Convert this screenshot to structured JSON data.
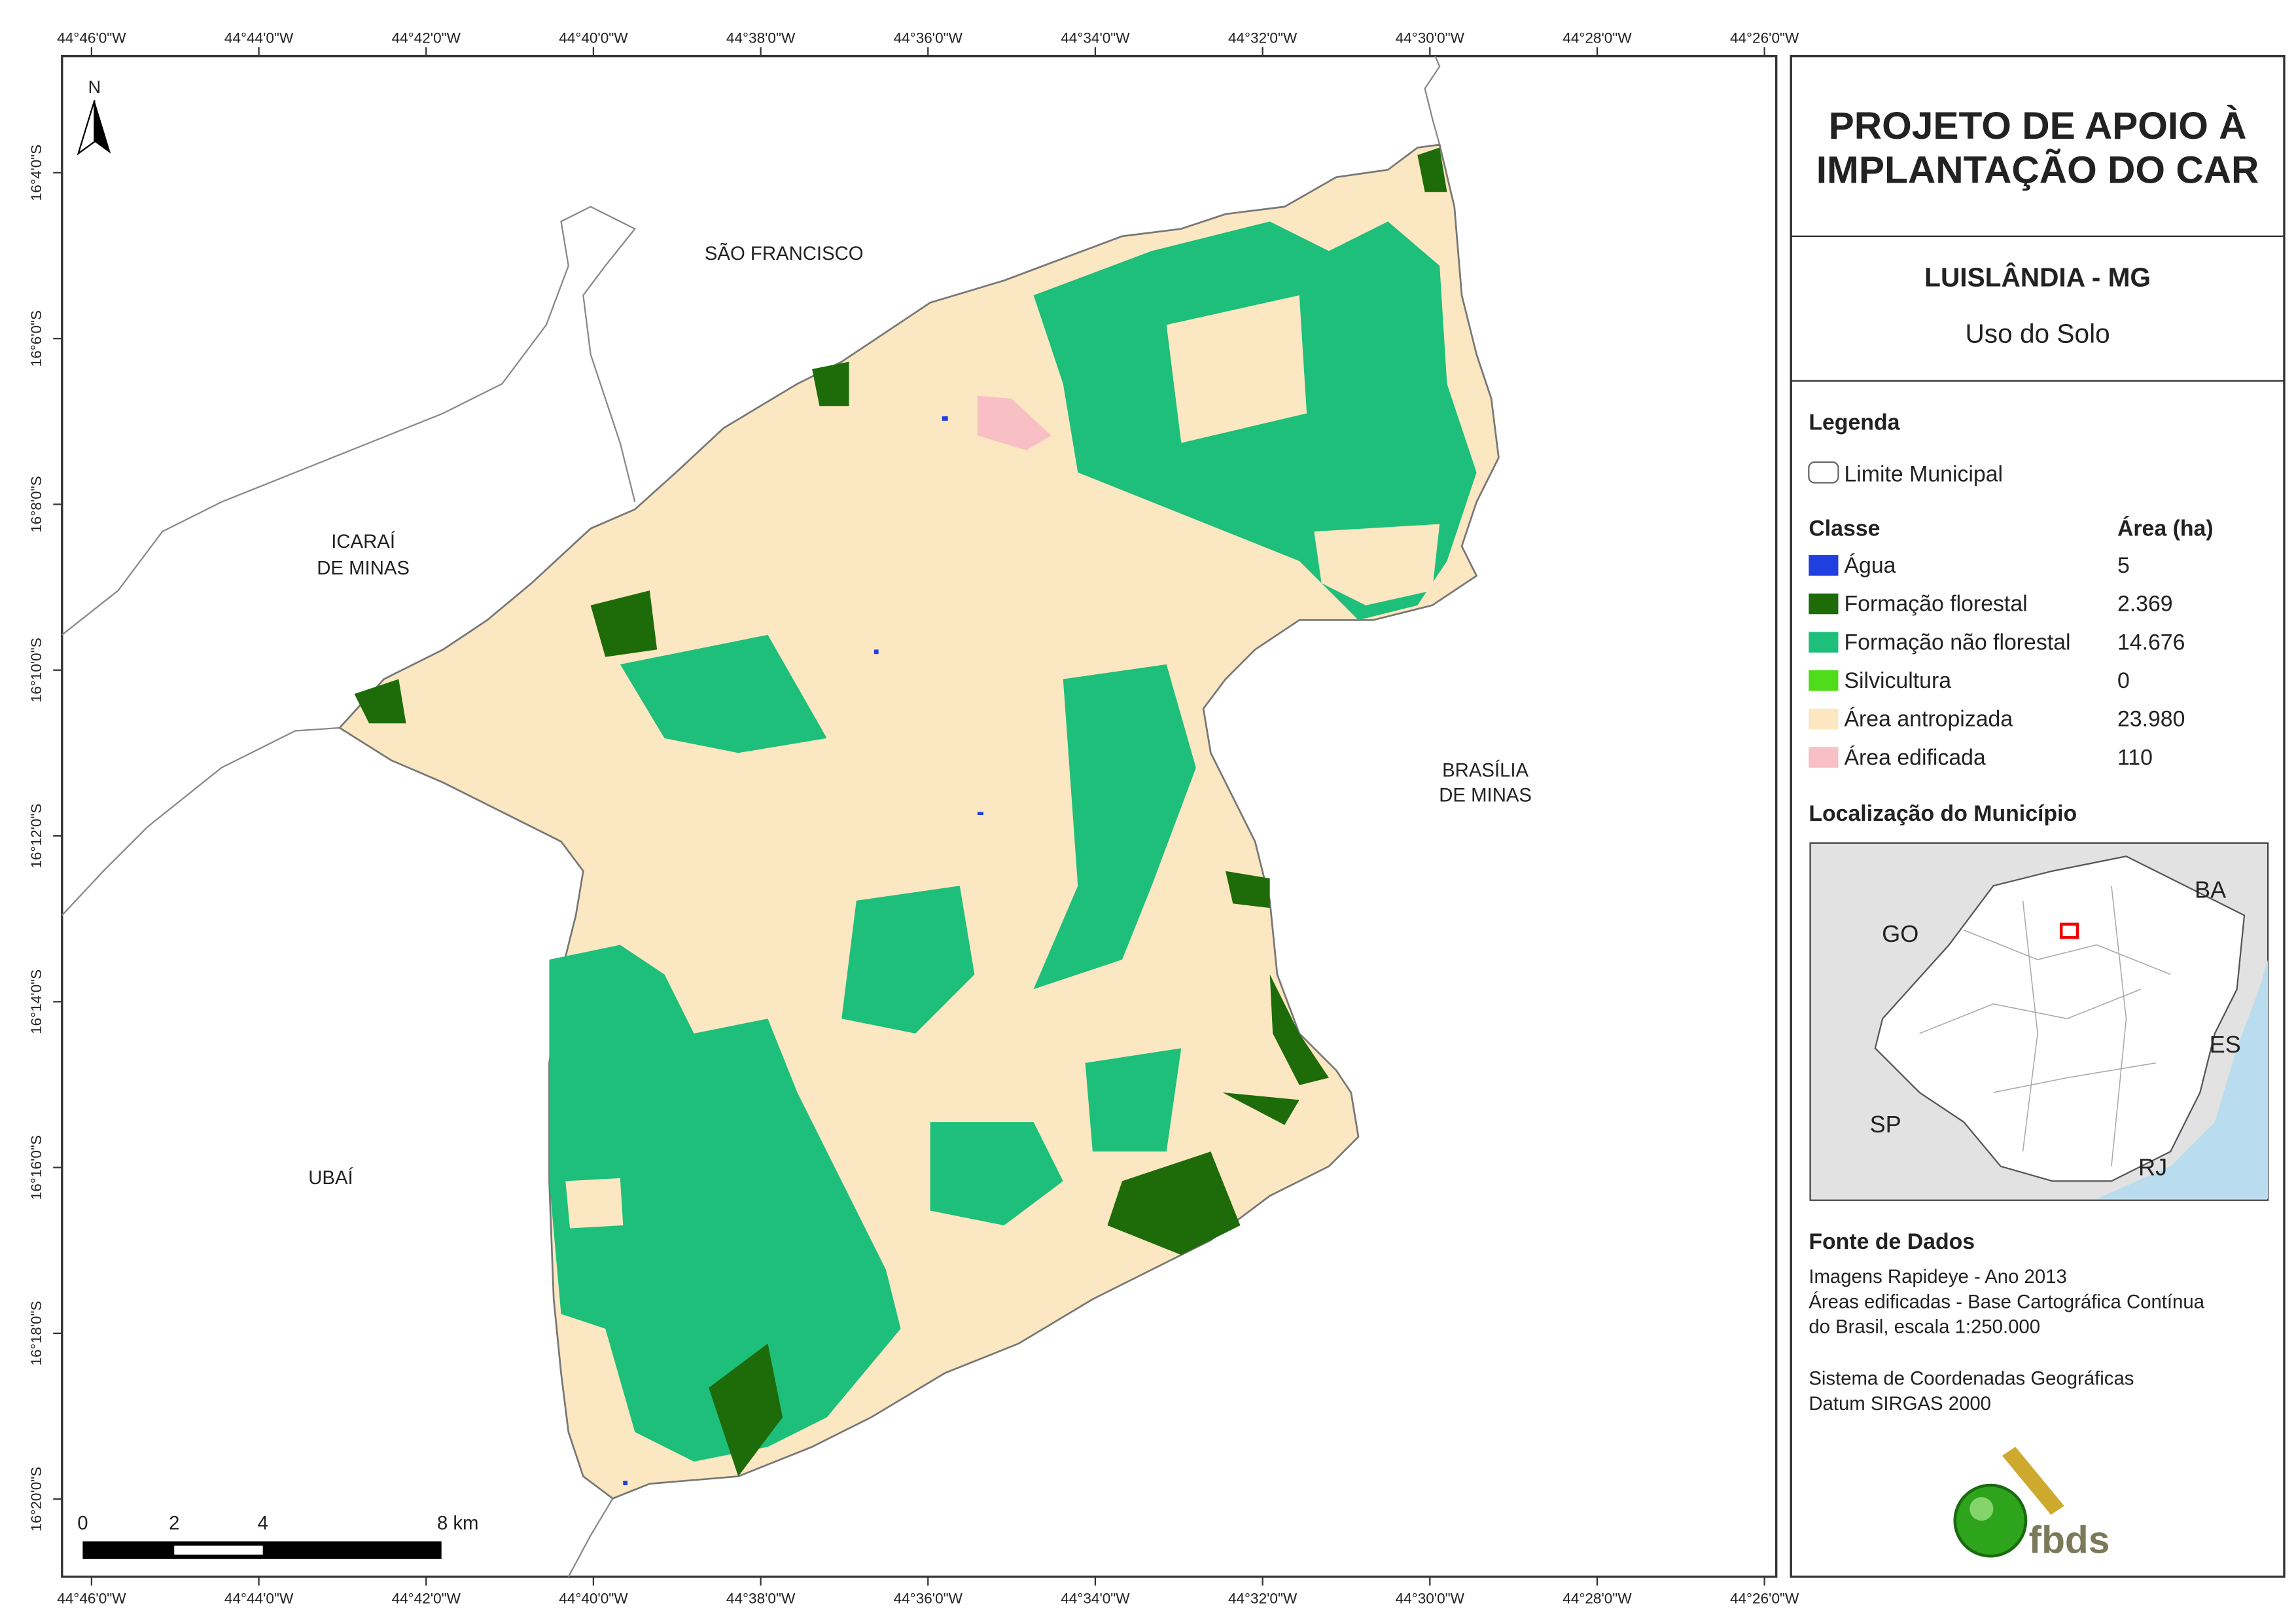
{
  "map": {
    "longitude_labels": [
      "44°46'0\"W",
      "44°44'0\"W",
      "44°42'0\"W",
      "44°40'0\"W",
      "44°38'0\"W",
      "44°36'0\"W",
      "44°34'0\"W",
      "44°32'0\"W",
      "44°30'0\"W",
      "44°28'0\"W",
      "44°26'0\"W"
    ],
    "latitude_labels": [
      "16°4'0\"S",
      "16°6'0\"S",
      "16°8'0\"S",
      "16°10'0\"S",
      "16°12'0\"S",
      "16°14'0\"S",
      "16°16'0\"S",
      "16°18'0\"S",
      "16°20'0\"S"
    ],
    "north": "N",
    "places": [
      {
        "lines": [
          "SÃO FRANCISCO"
        ]
      },
      {
        "lines": [
          "ICARAÍ",
          "DE MINAS"
        ]
      },
      {
        "lines": [
          "BRASÍLIA",
          "DE MINAS"
        ]
      },
      {
        "lines": [
          "UBAÍ"
        ]
      }
    ],
    "scale_bar": [
      "0",
      "2",
      "4",
      "8 km"
    ]
  },
  "panel": {
    "title": [
      "PROJETO DE APOIO À",
      "IMPLANTAÇÃO DO CAR"
    ],
    "municipality": "LUISLÂNDIA - MG",
    "theme": "Uso do Solo",
    "legend": {
      "heading": "Legenda",
      "boundary": "Limite Municipal",
      "class_heading": "Classe",
      "area_heading": "Área (ha)",
      "classes": [
        {
          "name": "Água",
          "area": "5",
          "color": "#1f3fe0"
        },
        {
          "name": "Formação florestal",
          "area": "2.369",
          "color": "#1e6b0a"
        },
        {
          "name": "Formação não florestal",
          "area": "14.676",
          "color": "#1dbf7b"
        },
        {
          "name": "Silvicultura",
          "area": "0",
          "color": "#4fdc1a"
        },
        {
          "name": "Área antropizada",
          "area": "23.980",
          "color": "#fbe7c1"
        },
        {
          "name": "Área edificada",
          "area": "110",
          "color": "#f8c0c5"
        }
      ]
    },
    "location": {
      "heading": "Localização do Município",
      "states": [
        "GO",
        "BA",
        "ES",
        "SP",
        "RJ"
      ]
    },
    "sources": {
      "heading": "Fonte de Dados",
      "lines": [
        "Imagens Rapideye - Ano 2013",
        "Áreas edificadas - Base Cartográfica Contínua",
        "do Brasil, escala 1:250.000",
        "Sistema de Coordenadas Geográficas",
        "Datum SIRGAS 2000"
      ]
    },
    "logo": "fbds"
  }
}
